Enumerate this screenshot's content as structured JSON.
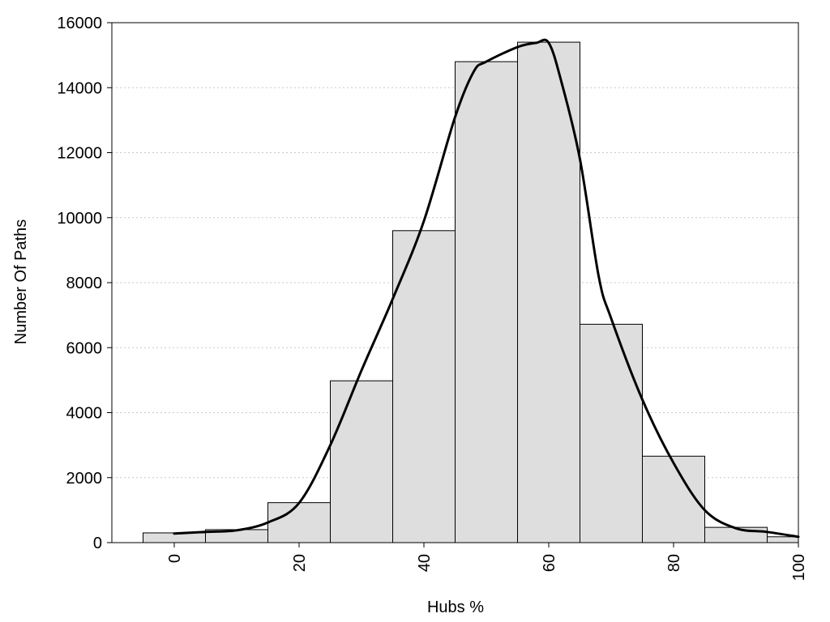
{
  "chart_data": {
    "type": "bar",
    "xlabel": "Hubs %",
    "ylabel": "Number Of Paths",
    "xlim": [
      -10,
      100
    ],
    "ylim": [
      0,
      16000
    ],
    "x_ticks": [
      0,
      20,
      40,
      60,
      80,
      100
    ],
    "y_ticks": [
      0,
      2000,
      4000,
      6000,
      8000,
      10000,
      12000,
      14000,
      16000
    ],
    "grid": "horizontal dotted",
    "bin_width": 10,
    "bin_centers": [
      0,
      10,
      20,
      30,
      40,
      50,
      60,
      70,
      80,
      90,
      100
    ],
    "values": [
      300,
      400,
      1230,
      4980,
      9600,
      14800,
      15400,
      6720,
      2660,
      470,
      180
    ],
    "colors": {
      "bar_fill": "#dedede",
      "bar_edge": "#000000",
      "curve": "#000000"
    },
    "density_curve": {
      "x": [
        0,
        5,
        10,
        15,
        20,
        25,
        30,
        35,
        40,
        45,
        48,
        50,
        55,
        58,
        60,
        62,
        65,
        68,
        70,
        75,
        80,
        85,
        90,
        95,
        100
      ],
      "y": [
        280,
        330,
        380,
        620,
        1220,
        3000,
        5300,
        7500,
        9900,
        13100,
        14500,
        14800,
        15250,
        15380,
        15380,
        14200,
        11800,
        8200,
        6900,
        4400,
        2450,
        1000,
        440,
        330,
        180
      ]
    }
  }
}
